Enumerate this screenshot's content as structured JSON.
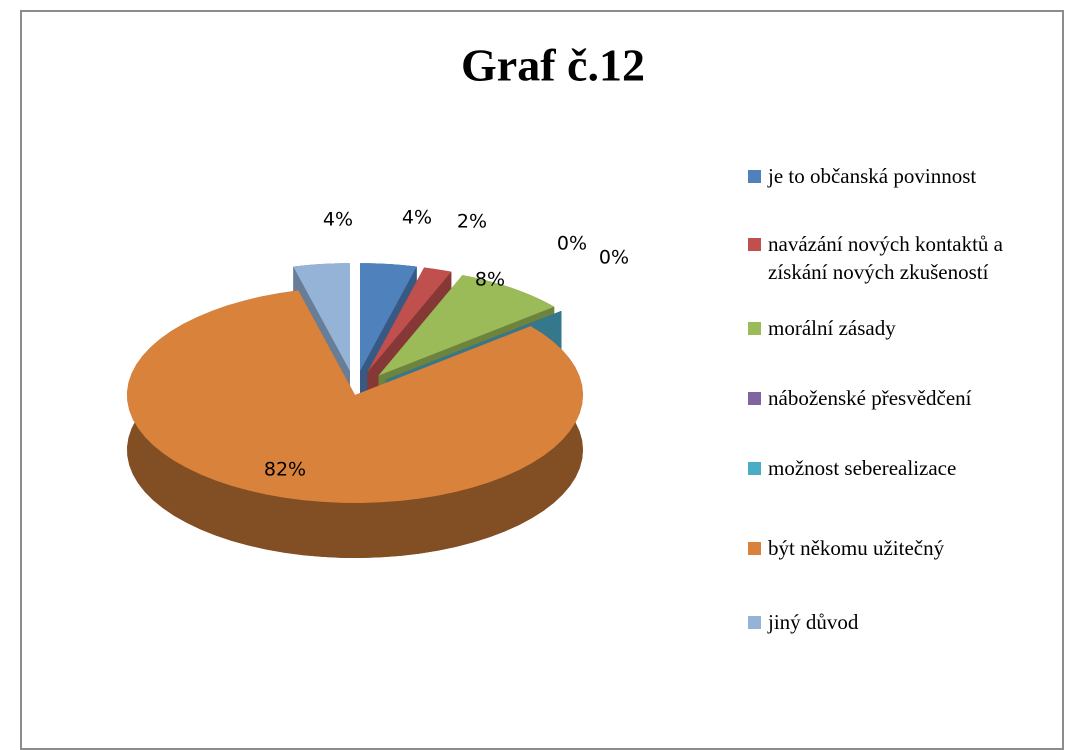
{
  "chart_data": {
    "type": "pie",
    "title": "Graf č.12",
    "categories": [
      "je to občanská povinnost",
      "navázání nových kontaktů a získání nových zkušeností",
      "morální zásady",
      "náboženské přesvědčení",
      "možnost seberealizace",
      "být někomu užitečný",
      "jiný důvod"
    ],
    "values": [
      4,
      2,
      8,
      0,
      0,
      82,
      4
    ],
    "value_labels": [
      "4%",
      "2%",
      "8%",
      "0%",
      "0%",
      "82%",
      "4%"
    ],
    "colors": [
      "#4f81bd",
      "#c0504d",
      "#9bbb59",
      "#8064a2",
      "#4bacc6",
      "#d9823b",
      "#95b3d7"
    ],
    "legend": "right"
  }
}
